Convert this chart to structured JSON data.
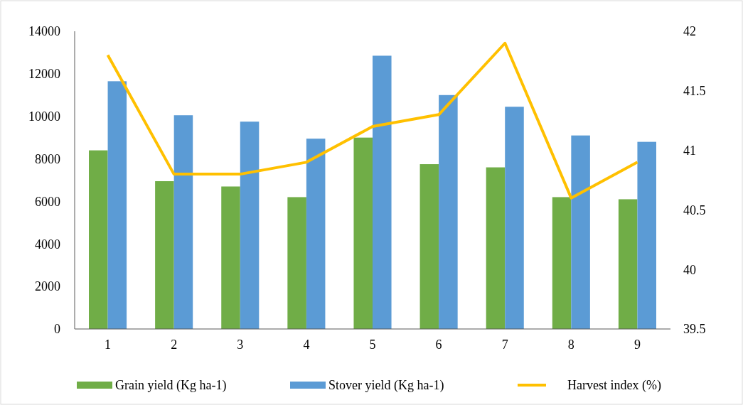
{
  "chart_data": {
    "type": "bar",
    "categories": [
      "1",
      "2",
      "3",
      "4",
      "5",
      "6",
      "7",
      "8",
      "9"
    ],
    "series": [
      {
        "name": "Grain yield (Kg ha-1)",
        "color": "#70ad47",
        "values": [
          8400,
          6950,
          6700,
          6200,
          9000,
          7750,
          7600,
          6200,
          6100
        ]
      },
      {
        "name": "Stover yield (Kg ha-1)",
        "color": "#5b9bd5",
        "values": [
          11650,
          10050,
          9750,
          8950,
          12850,
          11000,
          10450,
          9100,
          8800
        ]
      },
      {
        "name": "Harvest index (%)",
        "type": "line",
        "axis": "y2",
        "color": "#ffc000",
        "values": [
          41.8,
          40.8,
          40.8,
          40.9,
          41.2,
          41.3,
          41.9,
          40.6,
          40.9
        ]
      }
    ],
    "ylim": [
      0,
      14000
    ],
    "yticks": [
      0,
      2000,
      4000,
      6000,
      8000,
      10000,
      12000,
      14000
    ],
    "y2lim": [
      39.5,
      42
    ],
    "y2ticks": [
      39.5,
      40,
      40.5,
      41,
      41.5,
      42
    ],
    "grid": false,
    "legend": "bottom"
  }
}
